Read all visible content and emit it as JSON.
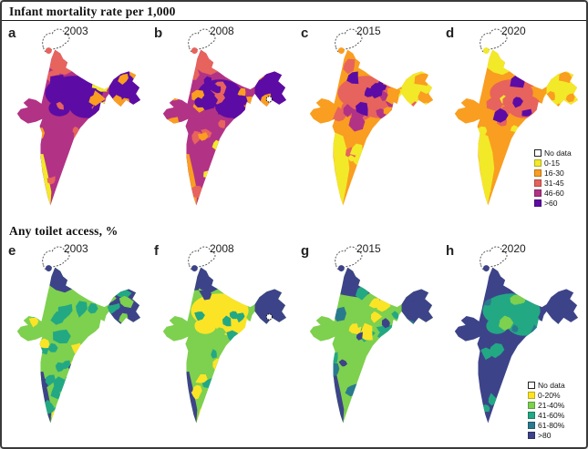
{
  "frame": {
    "border_color": "#3a3a3a",
    "background": "#ffffff"
  },
  "chart_data": {
    "type": "choropleth",
    "description": "Two 1x4 grids of district-level choropleth maps of India (panels a-d: infant mortality rate per 1,000 for 2003, 2008, 2015, 2020; panels e-h: any toilet access % for the same years). Jammu & Kashmir is outlined with a dashed line as No data. IMR declines from mostly >60/46-60 in 2003 to mostly 0-30 in 2020; toilet access rises from mostly 21-40% in 2003 to mostly >80% in 2020.",
    "figures": [
      {
        "id": "imr",
        "title": "Infant mortality rate per 1,000",
        "legend": {
          "items": [
            {
              "label": "No data",
              "color": "#ffffff"
            },
            {
              "label": "0-15",
              "color": "#f2e929"
            },
            {
              "label": "16-30",
              "color": "#f99e20"
            },
            {
              "label": "31-45",
              "color": "#e7635d"
            },
            {
              "label": "46-60",
              "color": "#b23286"
            },
            {
              "label": ">60",
              "color": "#5c0ca4"
            }
          ]
        },
        "panels": [
          {
            "letter": "a",
            "year": "2003",
            "pattern": "Predominantly >60 and 46-60 across the central and Gangetic belt; 31-45 in the north, west and far south; 0-15 only in Kerala and small northeast pockets.",
            "render": {
              "base": "#b23286",
              "belt": "#5c0ca4",
              "north": "#e7635d",
              "sw": "#f2e929",
              "ne": "#5c0ca4",
              "speckles": [
                [
                  "#e7635d",
                  20,
                  "any"
                ],
                [
                  "#5c0ca4",
                  10,
                  "center"
                ],
                [
                  "#f99e20",
                  7,
                  "east"
                ],
                [
                  "#f99e20",
                  4,
                  "any"
                ],
                [
                  "#f2e929",
                  3,
                  "east"
                ]
              ]
            }
          },
          {
            "letter": "b",
            "year": "2008",
            "pattern": "Still high (46-60/>60) in the central belt but more 31-45 and 16-30 along the west coast and northeast; 0-15 at the southern tip.",
            "render": {
              "base": "#b23286",
              "belt": "#5c0ca4",
              "beltSmall": true,
              "north": "#e7635d",
              "sw": "#f99e20",
              "ne": "#5c0ca4",
              "marker": true,
              "speckles": [
                [
                  "#e7635d",
                  22,
                  "any"
                ],
                [
                  "#f99e20",
                  8,
                  "west"
                ],
                [
                  "#f99e20",
                  6,
                  "east"
                ],
                [
                  "#5c0ca4",
                  8,
                  "center"
                ],
                [
                  "#f2e929",
                  4,
                  "south"
                ]
              ]
            }
          },
          {
            "letter": "c",
            "year": "2015",
            "pattern": "Mostly 16-30 and 31-45; remaining 46-60/>60 pockets confined to the central belt; 0-15 spreading in the south, west and northeast.",
            "render": {
              "base": "#f99e20",
              "belt": "#e7635d",
              "sw": "#f2e929",
              "swWide": true,
              "ne": "#f2e929",
              "speckles": [
                [
                  "#e7635d",
                  14,
                  "any"
                ],
                [
                  "#b23286",
                  7,
                  "center"
                ],
                [
                  "#5c0ca4",
                  5,
                  "center"
                ],
                [
                  "#f2e929",
                  8,
                  "south"
                ],
                [
                  "#f2e929",
                  4,
                  "east"
                ],
                [
                  "#f99e20",
                  8,
                  "east"
                ]
              ]
            }
          },
          {
            "letter": "d",
            "year": "2020",
            "pattern": "Predominantly 16-30 with large 0-15 areas in the north, south and east; only scattered 31-45/46-60 districts remain in the central belt.",
            "render": {
              "base": "#f99e20",
              "belt": "#e7635d",
              "beltSmall": true,
              "north": "#f2e929",
              "sw": "#f2e929",
              "swWide": true,
              "ne": "#f2e929",
              "speckles": [
                [
                  "#f2e929",
                  16,
                  "any"
                ],
                [
                  "#e7635d",
                  8,
                  "center"
                ],
                [
                  "#5c0ca4",
                  4,
                  "center"
                ],
                [
                  "#f99e20",
                  6,
                  "east"
                ]
              ]
            }
          }
        ]
      },
      {
        "id": "toilet",
        "title": "Any toilet access, %",
        "legend": {
          "items": [
            {
              "label": "No data",
              "color": "#ffffff"
            },
            {
              "label": "0-20%",
              "color": "#fbe426"
            },
            {
              "label": "21-40%",
              "color": "#7ed04f"
            },
            {
              "label": "41-60%",
              "color": "#23a884"
            },
            {
              "label": "61-80%",
              "color": "#2a7a8e"
            },
            {
              "label": ">80",
              "color": "#3d4389"
            }
          ]
        },
        "panels": [
          {
            "letter": "e",
            "year": "2003",
            "pattern": "Mostly 21-40% with 41-60% patches; 0-20% pockets in the plains; >80 in the Himalayan north, Kerala coast and the northeast.",
            "render": {
              "base": "#7ed04f",
              "north": "#3d4389",
              "sw": "#3d4389",
              "ne": "#3d4389",
              "speckles": [
                [
                  "#23a884",
                  20,
                  "any"
                ],
                [
                  "#fbe426",
                  9,
                  "any"
                ],
                [
                  "#3d4389",
                  4,
                  "any"
                ],
                [
                  "#23a884",
                  6,
                  "south"
                ],
                [
                  "#7ed04f",
                  5,
                  "east"
                ]
              ]
            }
          },
          {
            "letter": "f",
            "year": "2008",
            "pattern": "Large 0-20% area in the central/northern plains; 21-40% and 41-60% elsewhere; >80 in the north, Kerala and the northeast.",
            "render": {
              "base": "#7ed04f",
              "belt": "#fbe426",
              "north": "#3d4389",
              "sw": "#3d4389",
              "ne": "#3d4389",
              "marker": true,
              "speckles": [
                [
                  "#23a884",
                  16,
                  "any"
                ],
                [
                  "#fbe426",
                  8,
                  "south"
                ],
                [
                  "#3d4389",
                  5,
                  "north"
                ],
                [
                  "#7ed04f",
                  10,
                  "any"
                ]
              ]
            }
          },
          {
            "letter": "g",
            "year": "2015",
            "pattern": "Mixed 21-40%/41-60% with shrinking 0-20% pockets; expanding 61-80% and >80 in the north, coasts and northeast.",
            "render": {
              "base": "#7ed04f",
              "north": "#3d4389",
              "northBig": true,
              "sw": "#3d4389",
              "ne": "#3d4389",
              "speckles": [
                [
                  "#23a884",
                  22,
                  "any"
                ],
                [
                  "#2a7a8e",
                  10,
                  "any"
                ],
                [
                  "#fbe426",
                  7,
                  "center"
                ],
                [
                  "#3d4389",
                  8,
                  "any"
                ]
              ]
            }
          },
          {
            "letter": "h",
            "year": "2020",
            "pattern": "Predominantly >80 nationwide with 41-60%/61-80% patches in the central belt; almost no districts below 40%.",
            "render": {
              "base": "#3d4389",
              "belt": "#23a884",
              "speckles": [
                [
                  "#23a884",
                  14,
                  "any"
                ],
                [
                  "#2a7a8e",
                  12,
                  "any"
                ],
                [
                  "#7ed04f",
                  3,
                  "center"
                ]
              ]
            }
          }
        ]
      }
    ]
  }
}
